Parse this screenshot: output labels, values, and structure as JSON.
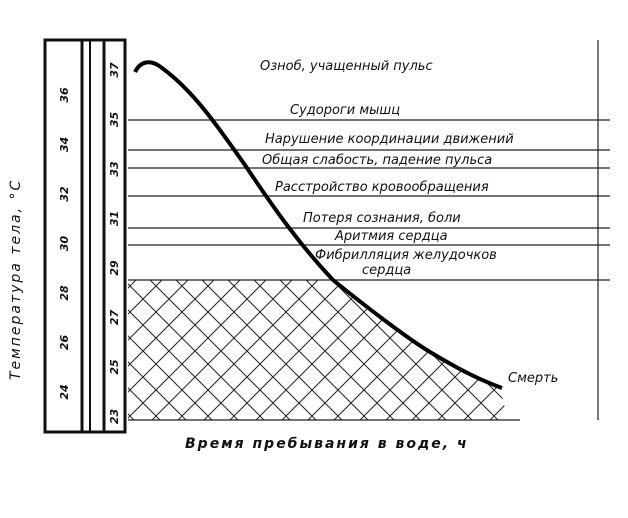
{
  "y_label": "Температура тела, °С",
  "x_label": "Время пребывания в воде, ч",
  "thermometer_left": [
    "36",
    "34",
    "32",
    "30",
    "28",
    "26",
    "24"
  ],
  "thermometer_right": [
    "37",
    "35",
    "33",
    "31",
    "29",
    "27",
    "25",
    "23"
  ],
  "stages": [
    "Озноб, учащенный пульс",
    "Судороги мышц",
    "Нарушение координации движений",
    "Общая слабость, падение пульса",
    "Расстройство кровообращения",
    "Потеря сознания, боли",
    "Аритмия сердца",
    "Фибрилляция желудочков",
    "сердца",
    "Смерть"
  ]
}
